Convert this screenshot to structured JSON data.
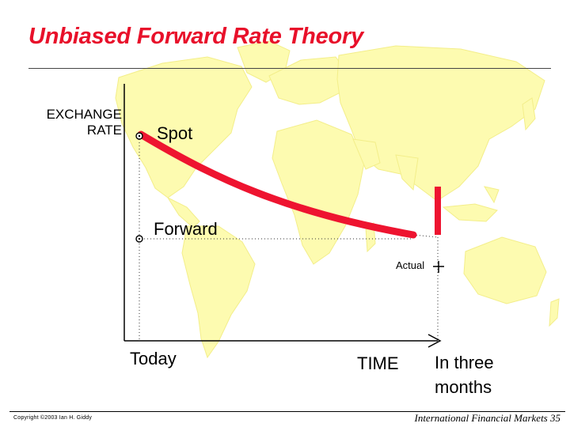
{
  "slide": {
    "title": "Unbiased Forward Rate Theory",
    "footer": "International Financial Markets 35",
    "copyright": "Copyright ©2003 Ian H. Giddy"
  },
  "diagram": {
    "y_axis_label_line1": "EXCHANGE",
    "y_axis_label_line2": "RATE",
    "x_axis_label": "TIME",
    "spot_label": "Spot",
    "forward_label": "Forward",
    "actual_label": "Actual",
    "today_label": "Today",
    "three_months_line1": "In three",
    "three_months_line2": "months"
  },
  "colors": {
    "title": "#e8102a",
    "curve": "#ee1430",
    "map": "#fdfbb0",
    "axis": "#000000"
  },
  "icons": {
    "background": "world-map-icon",
    "spot_marker": "circle-marker-icon",
    "forward_marker": "circle-marker-icon",
    "actual_marker": "plus-marker-icon"
  }
}
